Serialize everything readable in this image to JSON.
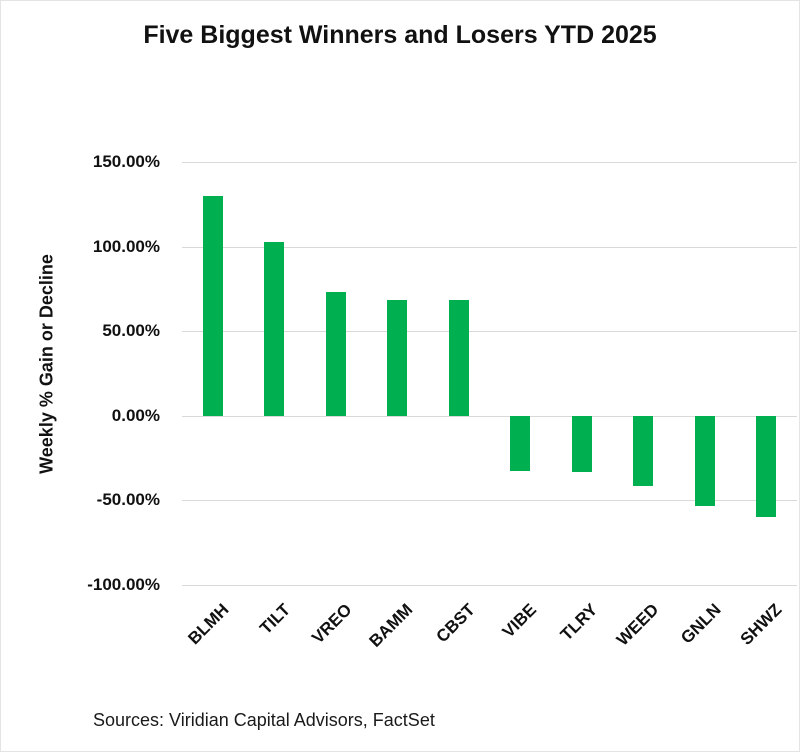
{
  "figure": {
    "source_note": "Sources: Viridian Capital Advisors, FactSet"
  },
  "chart_data": {
    "type": "bar",
    "title": "Five Biggest Winners and Losers YTD 2025",
    "categories": [
      "BLMH",
      "TILT",
      "VREO",
      "BAMM",
      "CBST",
      "VIBE",
      "TLRY",
      "WEED",
      "GNLN",
      "SHWZ"
    ],
    "values": [
      130.0,
      102.5,
      73.0,
      68.5,
      68.5,
      -32.5,
      -33.5,
      -41.5,
      -53.5,
      -60.0
    ],
    "value_unit": "percent",
    "xlabel": "",
    "ylabel": "Weekly % Gain or Decline",
    "ylim": [
      -100,
      150
    ],
    "yticks": [
      {
        "value": 150,
        "label": "150.00%"
      },
      {
        "value": 100,
        "label": "100.00%"
      },
      {
        "value": 50,
        "label": "50.00%"
      },
      {
        "value": 0,
        "label": "0.00%"
      },
      {
        "value": -50,
        "label": "-50.00%"
      },
      {
        "value": -100,
        "label": "-100.00%"
      }
    ],
    "grid": true,
    "legend_position": "none",
    "bar_color": "#00B050",
    "gridline_color": "#D9D9D9",
    "text_color": "#111111",
    "background_color": "#FFFFFF"
  }
}
